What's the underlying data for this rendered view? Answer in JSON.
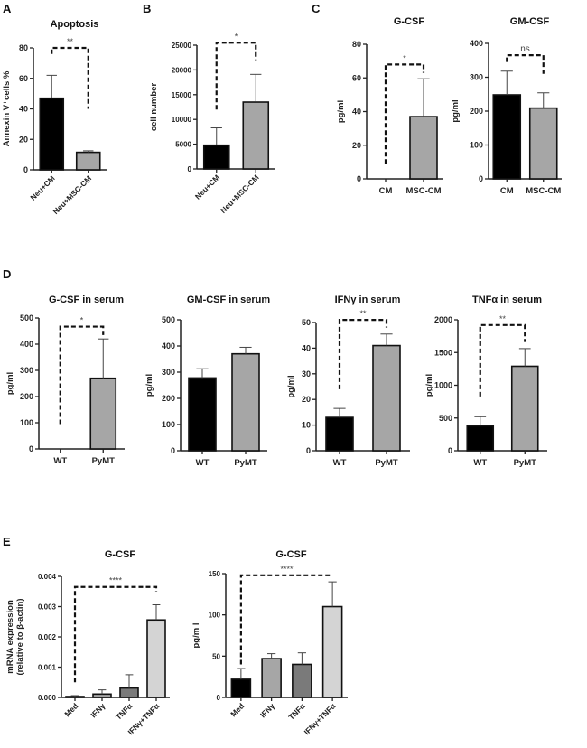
{
  "panel_letters": [
    "A",
    "B",
    "C",
    "D",
    "E"
  ],
  "chart_data": [
    {
      "id": "A-apoptosis",
      "panel": "A",
      "type": "bar",
      "title": "Apoptosis",
      "xlabel": "",
      "ylabel": "Annexin V⁺cells %",
      "ylim": [
        0,
        80
      ],
      "yticks": [
        "0",
        "20",
        "40",
        "60",
        "80"
      ],
      "ytick_values": [
        0,
        20,
        40,
        60,
        80
      ],
      "categories": [
        "Neu+CM",
        "Neu+MSC-CM"
      ],
      "rotated_labels": true,
      "values": [
        47,
        11.5
      ],
      "errors": [
        15,
        1
      ],
      "colors": [
        "#000000",
        "#a6a6a6"
      ],
      "significance": [
        {
          "from": 0,
          "to": 1,
          "label": "**",
          "y": 80,
          "left_end": 76,
          "right_end": 40
        }
      ]
    },
    {
      "id": "B-cell-number",
      "panel": "B",
      "type": "bar",
      "title": "",
      "xlabel": "",
      "ylabel": "cell number",
      "ylim": [
        0,
        25000
      ],
      "yticks": [
        "0",
        "5000",
        "10000",
        "15000",
        "20000",
        "25000"
      ],
      "ytick_values": [
        0,
        5000,
        10000,
        15000,
        20000,
        25000
      ],
      "categories": [
        "Neu+CM",
        "Neu+MSC-CM"
      ],
      "rotated_labels": true,
      "values": [
        4800,
        13500
      ],
      "errors": [
        3500,
        5600
      ],
      "colors": [
        "#000000",
        "#a6a6a6"
      ],
      "significance": [
        {
          "from": 0,
          "to": 1,
          "label": "*",
          "y": 25500,
          "left_end": 12000,
          "right_end": 22000
        }
      ]
    },
    {
      "id": "C-gcsf",
      "panel": "C",
      "type": "bar",
      "title": "G-CSF",
      "xlabel": "",
      "ylabel": "pg/ml",
      "ylim": [
        0,
        80
      ],
      "yticks": [
        "0",
        "20",
        "40",
        "60",
        "80"
      ],
      "ytick_values": [
        0,
        20,
        40,
        60,
        80
      ],
      "categories": [
        "CM",
        "MSC-CM"
      ],
      "rotated_labels": false,
      "values": [
        0,
        37
      ],
      "errors": [
        0,
        22.5
      ],
      "colors": [
        "#000000",
        "#a6a6a6"
      ],
      "significance": [
        {
          "from": 0,
          "to": 1,
          "label": "*",
          "y": 68,
          "left_end": 9,
          "right_end": 63
        }
      ]
    },
    {
      "id": "C-gmcsf",
      "panel": "C",
      "type": "bar",
      "title": "GM-CSF",
      "xlabel": "",
      "ylabel": "pg/ml",
      "ylim": [
        0,
        400
      ],
      "yticks": [
        "0",
        "100",
        "200",
        "300",
        "400"
      ],
      "ytick_values": [
        0,
        100,
        200,
        300,
        400
      ],
      "categories": [
        "CM",
        "MSC-CM"
      ],
      "rotated_labels": false,
      "values": [
        248,
        209
      ],
      "errors": [
        70,
        45
      ],
      "colors": [
        "#000000",
        "#a6a6a6"
      ],
      "significance": [
        {
          "from": 0,
          "to": 1,
          "label": "ns",
          "y": 365,
          "left_end": 345,
          "right_end": 310
        }
      ]
    },
    {
      "id": "D-gcsf-serum",
      "panel": "D",
      "type": "bar",
      "title": "G-CSF in serum",
      "xlabel": "",
      "ylabel": "pg/ml",
      "ylim": [
        0,
        500
      ],
      "yticks": [
        "0",
        "100",
        "200",
        "300",
        "400",
        "500"
      ],
      "ytick_values": [
        0,
        100,
        200,
        300,
        400,
        500
      ],
      "categories": [
        "WT",
        "PyMT"
      ],
      "rotated_labels": false,
      "values": [
        0,
        270
      ],
      "errors": [
        0,
        150
      ],
      "colors": [
        "#000000",
        "#a6a6a6"
      ],
      "significance": [
        {
          "from": 0,
          "to": 1,
          "label": "*",
          "y": 467,
          "left_end": 95,
          "right_end": 435
        }
      ]
    },
    {
      "id": "D-gmcsf-serum",
      "panel": "D",
      "type": "bar",
      "title": "GM-CSF in serum",
      "xlabel": "",
      "ylabel": "pg/ml",
      "ylim": [
        0,
        500
      ],
      "yticks": [
        "0",
        "100",
        "200",
        "300",
        "400",
        "500"
      ],
      "ytick_values": [
        0,
        100,
        200,
        300,
        400,
        500
      ],
      "categories": [
        "WT",
        "PyMT"
      ],
      "rotated_labels": false,
      "values": [
        278,
        370
      ],
      "errors": [
        35,
        25
      ],
      "colors": [
        "#000000",
        "#a6a6a6"
      ],
      "significance": []
    },
    {
      "id": "D-ifng-serum",
      "panel": "D",
      "type": "bar",
      "title": "IFNγ in serum",
      "xlabel": "",
      "ylabel": "pg/ml",
      "ylim": [
        0,
        50
      ],
      "yticks": [
        "0",
        "10",
        "20",
        "30",
        "40",
        "50"
      ],
      "ytick_values": [
        0,
        10,
        20,
        30,
        40,
        50
      ],
      "categories": [
        "WT",
        "PyMT"
      ],
      "rotated_labels": false,
      "values": [
        13,
        41
      ],
      "errors": [
        3.5,
        4.5
      ],
      "colors": [
        "#000000",
        "#a6a6a6"
      ],
      "significance": [
        {
          "from": 0,
          "to": 1,
          "label": "**",
          "y": 51,
          "left_end": 24,
          "right_end": 48
        }
      ]
    },
    {
      "id": "D-tnfa-serum",
      "panel": "D",
      "type": "bar",
      "title": "TNFα in serum",
      "xlabel": "",
      "ylabel": "pg/ml",
      "ylim": [
        0,
        2000
      ],
      "yticks": [
        "0",
        "500",
        "1000",
        "1500",
        "2000"
      ],
      "ytick_values": [
        0,
        500,
        1000,
        1500,
        2000
      ],
      "categories": [
        "WT",
        "PyMT"
      ],
      "rotated_labels": false,
      "values": [
        380,
        1290
      ],
      "errors": [
        140,
        270
      ],
      "colors": [
        "#000000",
        "#a6a6a6"
      ],
      "significance": [
        {
          "from": 0,
          "to": 1,
          "label": "**",
          "y": 1920,
          "left_end": 830,
          "right_end": 1660
        }
      ]
    },
    {
      "id": "E-gcsf-mrna",
      "panel": "E",
      "type": "bar",
      "title": "G-CSF",
      "xlabel": "",
      "ylabel": "mRNA expression\n(relative to β-actin)",
      "ylim": [
        0,
        0.004
      ],
      "yticks": [
        "0.000",
        "0.001",
        "0.002",
        "0.003",
        "0.004"
      ],
      "ytick_values": [
        0,
        0.001,
        0.002,
        0.003,
        0.004
      ],
      "categories": [
        "Med",
        "IFNγ",
        "TNFα",
        "IFNγ+TNFα"
      ],
      "rotated_labels": true,
      "values": [
        3e-05,
        0.00011,
        0.00031,
        0.00256
      ],
      "errors": [
        3e-05,
        0.00014,
        0.00044,
        0.0005
      ],
      "colors": [
        "#000000",
        "#a6a6a6",
        "#7a7a7a",
        "#d4d4d4"
      ],
      "significance": [
        {
          "from": 0,
          "to": 3,
          "label": "****",
          "y": 0.00365,
          "left_end": 0.0005,
          "right_end": 0.0035
        }
      ]
    },
    {
      "id": "E-gcsf-protein",
      "panel": "E",
      "type": "bar",
      "title": "G-CSF",
      "xlabel": "",
      "ylabel": "pg/m l",
      "ylim": [
        0,
        150
      ],
      "yticks": [
        "0",
        "50",
        "100",
        "150"
      ],
      "ytick_values": [
        0,
        50,
        100,
        150
      ],
      "categories": [
        "Med",
        "IFNγ",
        "TNFα",
        "IFNγ+TNFα"
      ],
      "rotated_labels": true,
      "values": [
        22,
        47,
        40,
        110
      ],
      "errors": [
        13,
        6,
        14,
        30
      ],
      "colors": [
        "#000000",
        "#a6a6a6",
        "#7a7a7a",
        "#d4d4d4"
      ],
      "significance": [
        {
          "from": 0,
          "to": 3,
          "label": "****",
          "y": 148,
          "left_end": 40,
          "right_end": 148
        }
      ]
    }
  ]
}
